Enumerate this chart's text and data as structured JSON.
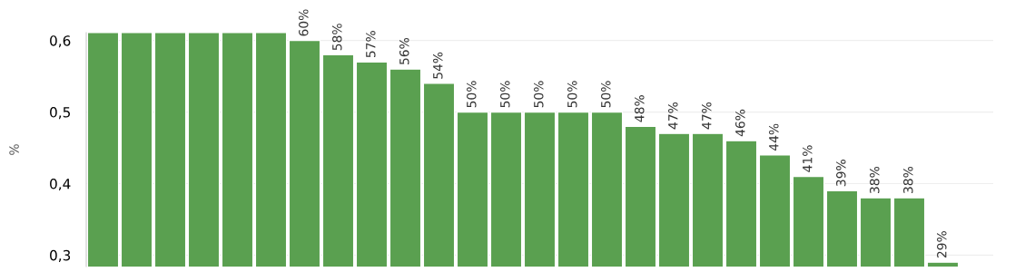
{
  "chart_data": {
    "type": "bar",
    "ylabel": "%",
    "categories": [
      null,
      null,
      null,
      null,
      null,
      null,
      null,
      null,
      null,
      null,
      null,
      null,
      null,
      null,
      null,
      null,
      null,
      null,
      null,
      null,
      null,
      null,
      null,
      null,
      null,
      null,
      null
    ],
    "values": [
      0.611,
      0.611,
      0.611,
      0.611,
      0.611,
      0.611,
      0.6,
      0.58,
      0.57,
      0.56,
      0.54,
      0.5,
      0.5,
      0.5,
      0.5,
      0.5,
      0.48,
      0.47,
      0.47,
      0.46,
      0.44,
      0.41,
      0.39,
      0.38,
      0.38,
      0.29,
      null
    ],
    "value_labels": [
      null,
      null,
      null,
      null,
      null,
      null,
      "60%",
      "58%",
      "57%",
      "56%",
      "54%",
      "50%",
      "50%",
      "50%",
      "50%",
      "50%",
      "48%",
      "47%",
      "47%",
      "46%",
      "44%",
      "41%",
      "39%",
      "38%",
      "38%",
      "29%",
      null
    ],
    "color": "#5aa050",
    "ylim": [
      0.284,
      0.611
    ],
    "yticks": [
      {
        "value": 0.3,
        "label": "0,3"
      },
      {
        "value": 0.4,
        "label": "0,4"
      },
      {
        "value": 0.5,
        "label": "0,5"
      },
      {
        "value": 0.6,
        "label": "0,6"
      }
    ],
    "grid": "y",
    "tick_labels": "y"
  }
}
